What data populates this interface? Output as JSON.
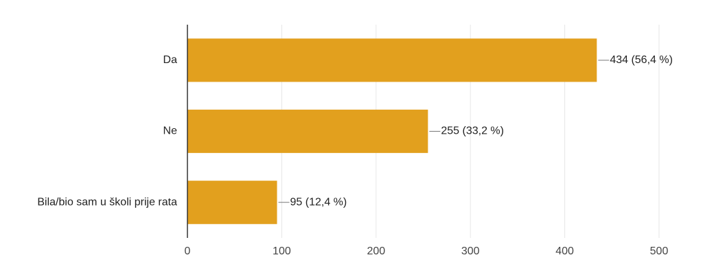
{
  "chart_data": {
    "type": "bar",
    "orientation": "horizontal",
    "categories": [
      "Da",
      "Ne",
      "Bila/bio sam u školi prije rata"
    ],
    "values": [
      434,
      255,
      95
    ],
    "value_labels": [
      "434 (56,4 %)",
      "255 (33,2 %)",
      "95 (12,4 %)"
    ],
    "color": "#e2a01e",
    "xlim": [
      0,
      500
    ],
    "xticks": [
      0,
      100,
      200,
      300,
      400,
      500
    ],
    "grid": true
  }
}
